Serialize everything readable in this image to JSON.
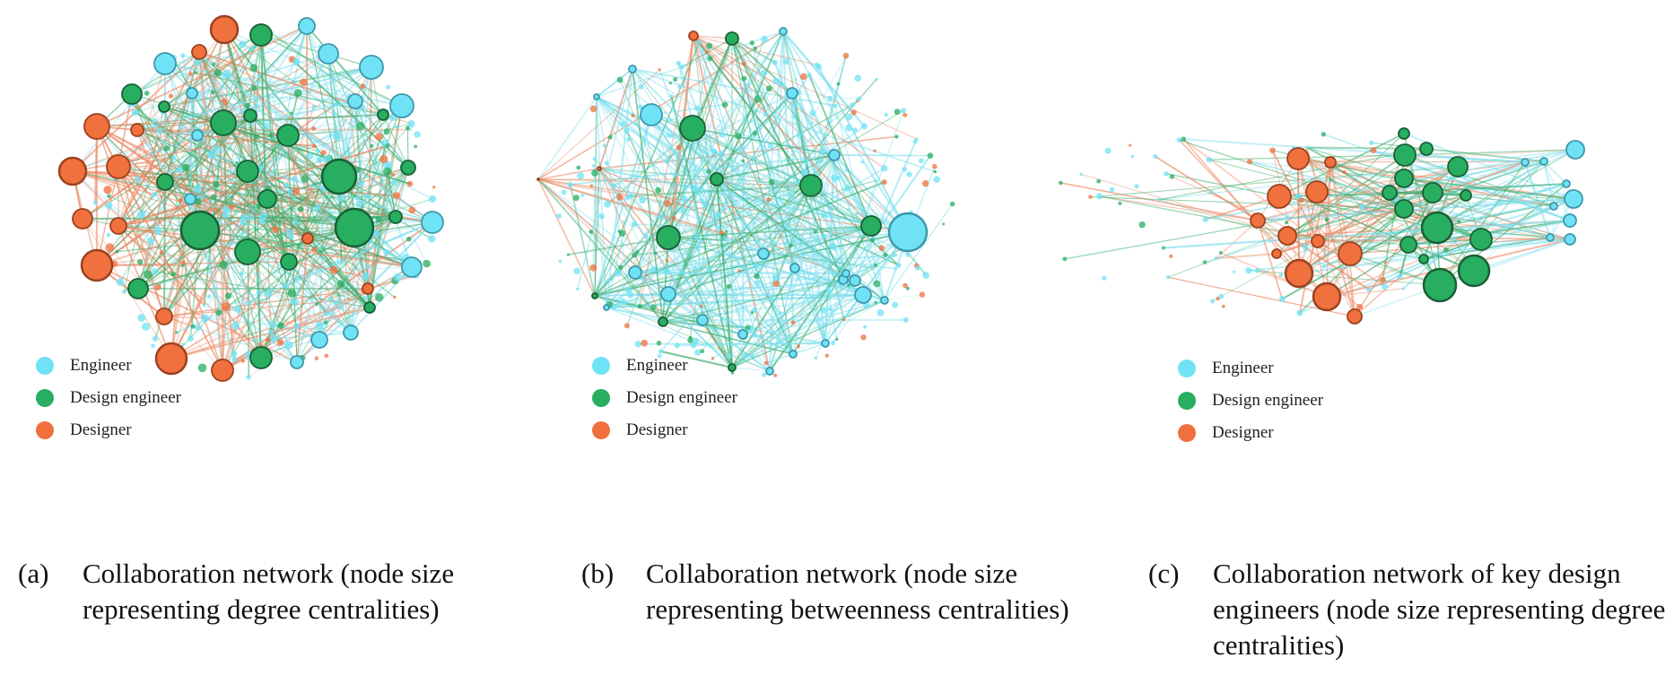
{
  "legend": {
    "engineer": "Engineer",
    "design_engineer": "Design engineer",
    "designer": "Designer"
  },
  "colors": {
    "engineer": "#6fe3f5",
    "design_engineer": "#27ae60",
    "designer": "#f0703e",
    "engineer_edge": "#7edfee",
    "design_engineer_edge": "#3cae6e",
    "designer_edge": "#ec8a66"
  },
  "panels": [
    {
      "id": "a",
      "letter": "(a)",
      "caption": "Collaboration network (node size representing degree centralities)"
    },
    {
      "id": "b",
      "letter": "(b)",
      "caption": "Collaboration network (node size representing betweenness centralities)"
    },
    {
      "id": "c",
      "letter": "(c)",
      "caption": "Collaboration network of key design engineers (node size representing degree centralities)"
    }
  ]
}
